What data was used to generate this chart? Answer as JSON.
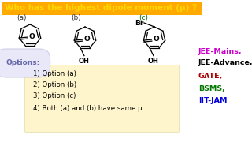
{
  "title": "Who has the highest dipole moment (μ) ?",
  "title_color": "#FFD700",
  "title_bg": "#FF6600",
  "background_color": "#FFFFFF",
  "label_a": "(a)",
  "label_b": "(b)",
  "label_c": "(c)",
  "label_color": "#333333",
  "options_label": "Options:",
  "options_label_color": "#6666AA",
  "options": [
    "1) Option (a)",
    "2) Option (b)",
    "3) Option (c)",
    "4) Both (a) and (b) have same μ."
  ],
  "options_box_color": "#FFF5CC",
  "side_labels": [
    "JEE-Mains,",
    "JEE-Advance,",
    "GATE,",
    "BSMS,",
    "IIT-JAM"
  ],
  "side_colors": [
    "#CC00CC",
    "#000000",
    "#AA0000",
    "#007700",
    "#0000DD"
  ]
}
